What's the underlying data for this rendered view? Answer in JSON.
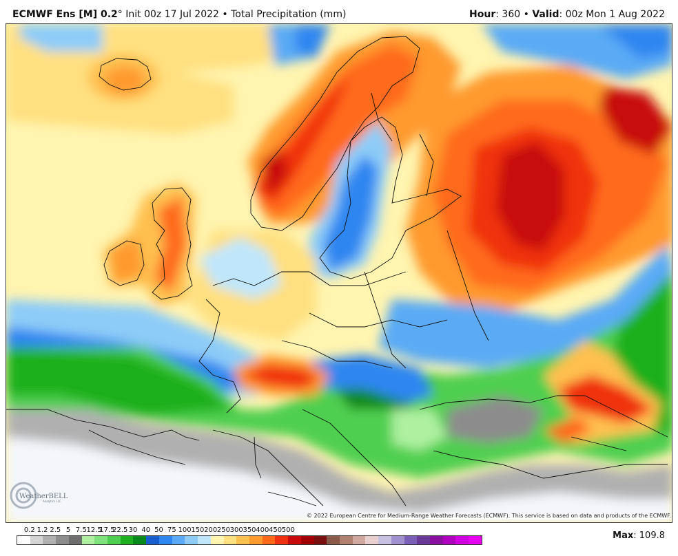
{
  "header": {
    "model": "ECMWF Ens [M] 0.2",
    "degree": "°",
    "init": " Init 00z 17 Jul 2022",
    "separator": " • ",
    "field": "Total Precipitation (mm)",
    "hour_label": "Hour",
    "hour_value": ": 360",
    "valid_label": "Valid",
    "valid_value": ": 00z Mon 1 Aug 2022"
  },
  "copyright": "© 2022 European Centre for Medium-Range Weather Forecasts (ECMWF). This service is based on data and products of the ECMWF.",
  "logo": {
    "text": "WeatherBELL",
    "subtext": "Analytics LLC"
  },
  "legend": {
    "labels": [
      "0.2",
      "1.2",
      "2.5",
      "5",
      "7.5",
      "12.5",
      "17.5",
      "22.5",
      "30",
      "40",
      "50",
      "75",
      "100",
      "150",
      "200",
      "250",
      "300",
      "350",
      "400",
      "450",
      "500"
    ],
    "colors": [
      "#ffffff",
      "#d4d4d4",
      "#b0b0b0",
      "#8c8c8c",
      "#6e6e6e",
      "#aef0a0",
      "#7de37a",
      "#4fcf4f",
      "#1fb01f",
      "#0a8a1a",
      "#1a5fd0",
      "#2e86f0",
      "#5aaaf5",
      "#8dccf8",
      "#bfe6fb",
      "#fff4b0",
      "#ffe080",
      "#ffc050",
      "#ff9a2e",
      "#ff6a1a",
      "#f03010",
      "#c80a0a",
      "#a00000",
      "#7a1010",
      "#8a5a4a",
      "#b08070",
      "#d0a8a0",
      "#e8d0d0",
      "#c8c0e0",
      "#a090d0",
      "#7a60b8",
      "#6a3a9a",
      "#8a10a0",
      "#b000c0",
      "#d000e0",
      "#e800f0"
    ]
  },
  "max_label": "Max",
  "max_value": ": 109.8"
}
